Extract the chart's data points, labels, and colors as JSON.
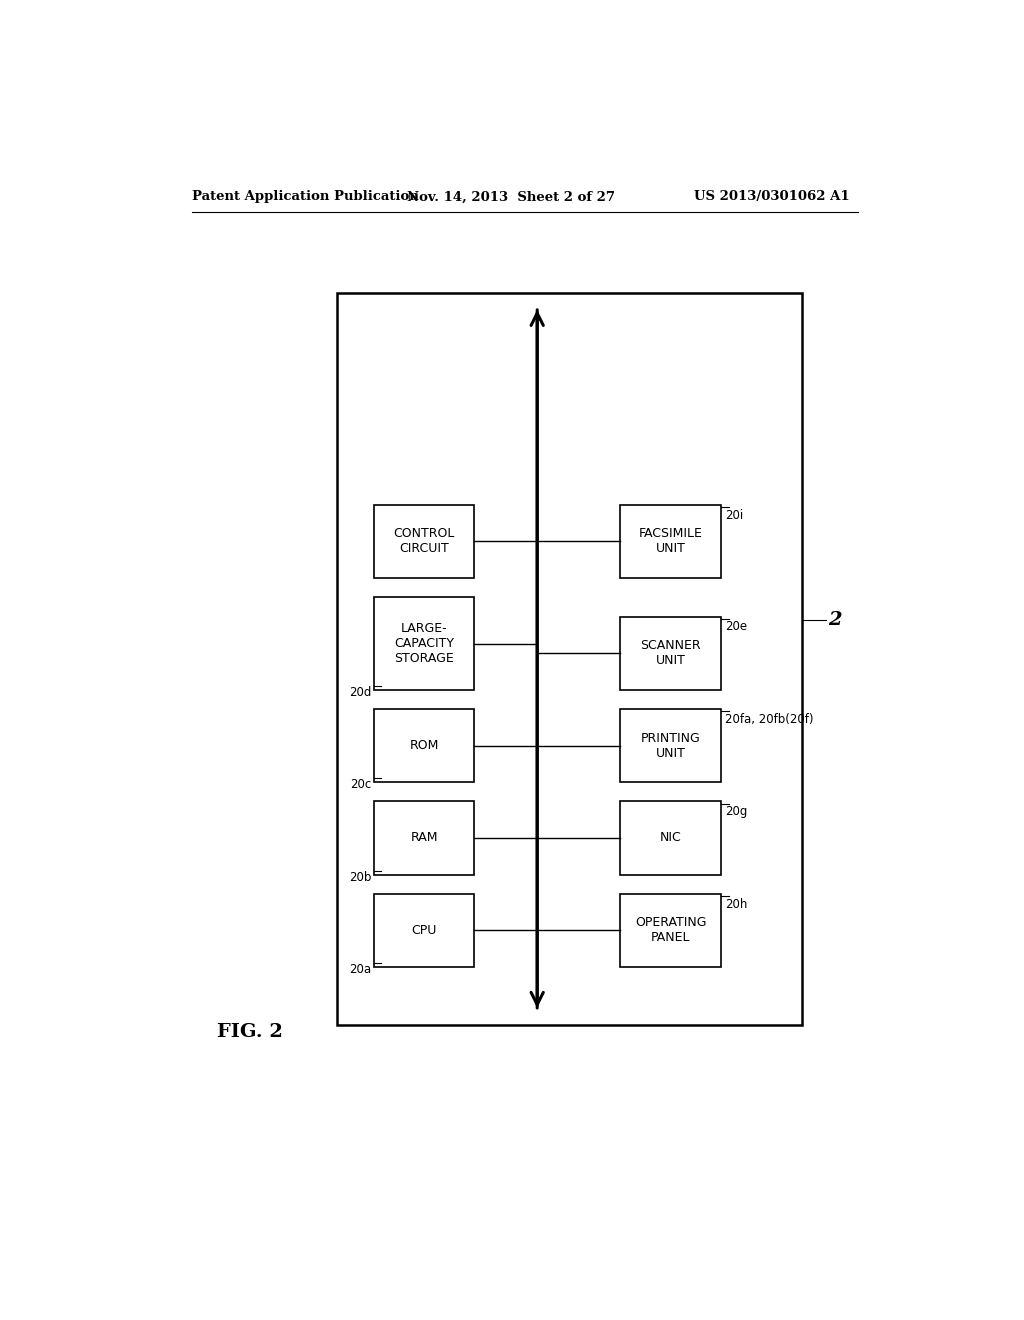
{
  "header_left": "Patent Application Publication",
  "header_mid": "Nov. 14, 2013  Sheet 2 of 27",
  "header_right": "US 2013/0301062 A1",
  "fig_label": "FIG. 2",
  "device_label": "2",
  "bg_color": "#ffffff",
  "left_boxes": [
    {
      "label": "CPU",
      "ref": "20a"
    },
    {
      "label": "RAM",
      "ref": "20b"
    },
    {
      "label": "ROM",
      "ref": "20c"
    },
    {
      "label": "LARGE-\nCAPACITY\nSTORAGE",
      "ref": "20d"
    },
    {
      "label": "CONTROL\nCIRCUIT",
      "ref": null
    }
  ],
  "right_boxes": [
    {
      "label": "OPERATING\nPANEL",
      "ref": "20h"
    },
    {
      "label": "NIC",
      "ref": "20g"
    },
    {
      "label": "PRINTING\nUNIT",
      "ref": "20fa, 20fb(20f)"
    },
    {
      "label": "SCANNER\nUNIT",
      "ref": "20e"
    },
    {
      "label": "FACSIMILE\nUNIT",
      "ref": "20i"
    }
  ]
}
